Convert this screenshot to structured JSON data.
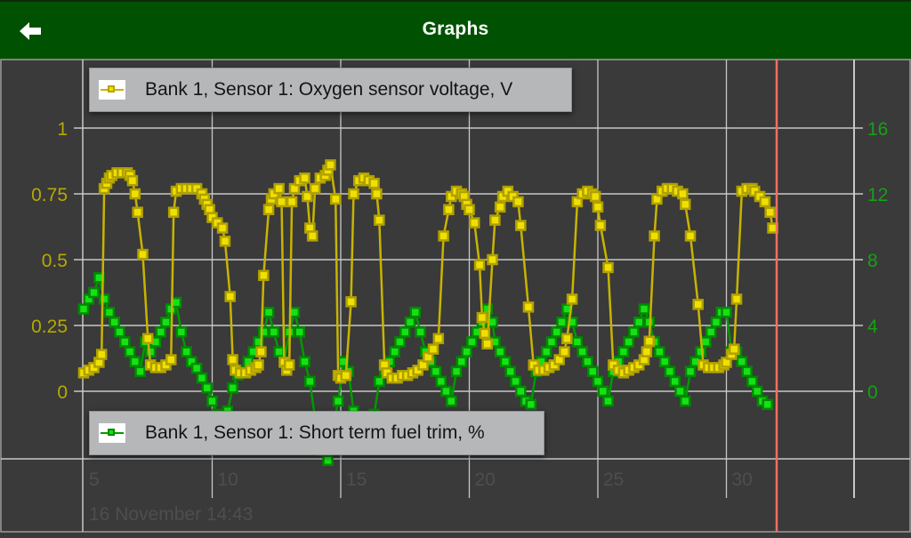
{
  "appbar": {
    "title": "Graphs",
    "back_icon": "arrow-left-icon"
  },
  "colors": {
    "appbar_bg": "#005202",
    "plot_bg": "#3a3a3a",
    "grid": "#c8c8c8",
    "o2_series": "#c8b400",
    "o2_marker_fill": "#f0e000",
    "fuel_trim_series": "#009a00",
    "fuel_trim_marker_fill": "#16e016",
    "cursor_line": "#f07060",
    "x_label": "#4e4e4e"
  },
  "legends": {
    "o2": "Bank 1, Sensor 1: Oxygen sensor voltage, V",
    "fuel_trim": "Bank 1, Sensor 1: Short term fuel trim, %"
  },
  "footer": {
    "timestamp": "16 November 14:43"
  },
  "chart_data": {
    "type": "line",
    "title": "Graphs",
    "xlabel": "16 November 14:43",
    "x_ticks": [
      5,
      10,
      15,
      20,
      25,
      30
    ],
    "xlim": [
      5,
      34.5
    ],
    "cursor_x": 31.8,
    "left_axis": {
      "label": "Oxygen sensor voltage, V",
      "ticks": [
        "0",
        "0.25",
        "0.5",
        "0.75",
        "1"
      ],
      "tick_values": [
        0,
        0.25,
        0.5,
        0.75,
        1
      ],
      "ylim": [
        -0.25,
        1.25
      ]
    },
    "right_axis": {
      "label": "Short term fuel trim, %",
      "ticks": [
        "0",
        "4",
        "8",
        "12",
        "16"
      ],
      "tick_values": [
        0,
        4,
        8,
        12,
        16
      ],
      "ylim": [
        -4,
        20
      ]
    },
    "grid": true,
    "legend_position": "top-left / bottom-left",
    "series": [
      {
        "name": "Bank 1, Sensor 1: Oxygen sensor voltage, V",
        "axis": "left",
        "points": [
          [
            5.0,
            0.07
          ],
          [
            5.2,
            0.08
          ],
          [
            5.4,
            0.09
          ],
          [
            5.6,
            0.11
          ],
          [
            5.7,
            0.14
          ],
          [
            5.8,
            0.77
          ],
          [
            5.9,
            0.79
          ],
          [
            6.0,
            0.81
          ],
          [
            6.1,
            0.82
          ],
          [
            6.3,
            0.83
          ],
          [
            6.5,
            0.83
          ],
          [
            6.7,
            0.83
          ],
          [
            6.8,
            0.82
          ],
          [
            6.9,
            0.8
          ],
          [
            7.0,
            0.75
          ],
          [
            7.1,
            0.68
          ],
          [
            7.3,
            0.52
          ],
          [
            7.5,
            0.2
          ],
          [
            7.6,
            0.1
          ],
          [
            7.8,
            0.09
          ],
          [
            8.0,
            0.09
          ],
          [
            8.2,
            0.1
          ],
          [
            8.4,
            0.12
          ],
          [
            8.5,
            0.68
          ],
          [
            8.6,
            0.76
          ],
          [
            8.8,
            0.77
          ],
          [
            9.0,
            0.77
          ],
          [
            9.2,
            0.77
          ],
          [
            9.4,
            0.77
          ],
          [
            9.6,
            0.75
          ],
          [
            9.7,
            0.73
          ],
          [
            9.8,
            0.71
          ],
          [
            9.9,
            0.69
          ],
          [
            10.0,
            0.66
          ],
          [
            10.2,
            0.64
          ],
          [
            10.4,
            0.62
          ],
          [
            10.5,
            0.57
          ],
          [
            10.7,
            0.36
          ],
          [
            10.8,
            0.12
          ],
          [
            10.9,
            0.08
          ],
          [
            11.1,
            0.07
          ],
          [
            11.3,
            0.07
          ],
          [
            11.5,
            0.08
          ],
          [
            11.7,
            0.09
          ],
          [
            11.8,
            0.1
          ],
          [
            11.9,
            0.15
          ],
          [
            12.0,
            0.44
          ],
          [
            12.2,
            0.69
          ],
          [
            12.3,
            0.73
          ],
          [
            12.4,
            0.75
          ],
          [
            12.6,
            0.77
          ],
          [
            12.7,
            0.72
          ],
          [
            12.8,
            0.11
          ],
          [
            12.9,
            0.08
          ],
          [
            13.0,
            0.1
          ],
          [
            13.1,
            0.72
          ],
          [
            13.2,
            0.77
          ],
          [
            13.4,
            0.8
          ],
          [
            13.6,
            0.81
          ],
          [
            13.7,
            0.74
          ],
          [
            13.8,
            0.62
          ],
          [
            13.9,
            0.59
          ],
          [
            14.0,
            0.77
          ],
          [
            14.2,
            0.81
          ],
          [
            14.4,
            0.82
          ],
          [
            14.5,
            0.84
          ],
          [
            14.6,
            0.86
          ],
          [
            14.8,
            0.73
          ],
          [
            14.9,
            0.06
          ],
          [
            15.0,
            0.05
          ],
          [
            15.2,
            0.06
          ],
          [
            15.4,
            0.34
          ],
          [
            15.5,
            0.75
          ],
          [
            15.7,
            0.8
          ],
          [
            15.9,
            0.81
          ],
          [
            16.1,
            0.8
          ],
          [
            16.3,
            0.79
          ],
          [
            16.4,
            0.75
          ],
          [
            16.5,
            0.65
          ],
          [
            16.7,
            0.1
          ],
          [
            16.8,
            0.07
          ],
          [
            17.0,
            0.05
          ],
          [
            17.2,
            0.05
          ],
          [
            17.4,
            0.06
          ],
          [
            17.6,
            0.06
          ],
          [
            17.8,
            0.07
          ],
          [
            18.0,
            0.08
          ],
          [
            18.2,
            0.1
          ],
          [
            18.4,
            0.13
          ],
          [
            18.6,
            0.16
          ],
          [
            18.8,
            0.2
          ],
          [
            19.0,
            0.59
          ],
          [
            19.2,
            0.69
          ],
          [
            19.3,
            0.74
          ],
          [
            19.5,
            0.76
          ],
          [
            19.7,
            0.75
          ],
          [
            19.8,
            0.74
          ],
          [
            19.9,
            0.71
          ],
          [
            20.0,
            0.69
          ],
          [
            20.2,
            0.64
          ],
          [
            20.4,
            0.48
          ],
          [
            20.5,
            0.28
          ],
          [
            20.6,
            0.22
          ],
          [
            20.7,
            0.18
          ],
          [
            20.9,
            0.5
          ],
          [
            21.0,
            0.65
          ],
          [
            21.2,
            0.7
          ],
          [
            21.3,
            0.74
          ],
          [
            21.5,
            0.76
          ],
          [
            21.7,
            0.74
          ],
          [
            21.9,
            0.72
          ],
          [
            22.0,
            0.63
          ],
          [
            22.3,
            0.32
          ],
          [
            22.5,
            0.1
          ],
          [
            22.7,
            0.08
          ],
          [
            22.9,
            0.08
          ],
          [
            23.1,
            0.09
          ],
          [
            23.3,
            0.1
          ],
          [
            23.5,
            0.12
          ],
          [
            23.7,
            0.15
          ],
          [
            23.8,
            0.2
          ],
          [
            24.0,
            0.35
          ],
          [
            24.2,
            0.72
          ],
          [
            24.4,
            0.75
          ],
          [
            24.6,
            0.76
          ],
          [
            24.8,
            0.75
          ],
          [
            24.9,
            0.74
          ],
          [
            25.0,
            0.7
          ],
          [
            25.1,
            0.63
          ],
          [
            25.4,
            0.47
          ],
          [
            25.6,
            0.1
          ],
          [
            25.8,
            0.08
          ],
          [
            26.0,
            0.07
          ],
          [
            26.2,
            0.08
          ],
          [
            26.4,
            0.09
          ],
          [
            26.6,
            0.1
          ],
          [
            26.8,
            0.12
          ],
          [
            26.9,
            0.15
          ],
          [
            27.0,
            0.19
          ],
          [
            27.2,
            0.59
          ],
          [
            27.3,
            0.73
          ],
          [
            27.5,
            0.76
          ],
          [
            27.7,
            0.77
          ],
          [
            27.9,
            0.77
          ],
          [
            28.1,
            0.76
          ],
          [
            28.3,
            0.75
          ],
          [
            28.4,
            0.71
          ],
          [
            28.6,
            0.59
          ],
          [
            28.9,
            0.33
          ],
          [
            29.1,
            0.1
          ],
          [
            29.3,
            0.09
          ],
          [
            29.5,
            0.09
          ],
          [
            29.7,
            0.09
          ],
          [
            29.9,
            0.1
          ],
          [
            30.0,
            0.11
          ],
          [
            30.2,
            0.14
          ],
          [
            30.3,
            0.16
          ],
          [
            30.4,
            0.35
          ],
          [
            30.6,
            0.76
          ],
          [
            30.8,
            0.77
          ],
          [
            31.0,
            0.77
          ],
          [
            31.1,
            0.76
          ],
          [
            31.3,
            0.74
          ],
          [
            31.5,
            0.72
          ],
          [
            31.7,
            0.68
          ],
          [
            31.8,
            0.62
          ]
        ]
      },
      {
        "name": "Bank 1, Sensor 1: Short term fuel trim, %",
        "axis": "right",
        "points": [
          [
            5.0,
            5.0
          ],
          [
            5.2,
            5.6
          ],
          [
            5.4,
            6.0
          ],
          [
            5.6,
            6.9
          ],
          [
            5.8,
            5.6
          ],
          [
            6.0,
            4.8
          ],
          [
            6.2,
            4.2
          ],
          [
            6.4,
            3.6
          ],
          [
            6.6,
            3.0
          ],
          [
            6.8,
            2.4
          ],
          [
            7.0,
            1.8
          ],
          [
            7.2,
            1.2
          ],
          [
            7.4,
            3.0
          ],
          [
            7.6,
            2.4
          ],
          [
            7.8,
            3.0
          ],
          [
            8.0,
            3.6
          ],
          [
            8.2,
            4.2
          ],
          [
            8.4,
            5.0
          ],
          [
            8.6,
            5.4
          ],
          [
            8.8,
            3.6
          ],
          [
            9.0,
            2.4
          ],
          [
            9.2,
            1.8
          ],
          [
            9.4,
            1.4
          ],
          [
            9.6,
            0.8
          ],
          [
            9.8,
            0.2
          ],
          [
            10.0,
            -0.6
          ],
          [
            10.2,
            -1.4
          ],
          [
            10.5,
            -2.0
          ],
          [
            10.6,
            -1.2
          ],
          [
            10.8,
            0.2
          ],
          [
            11.0,
            1.0
          ],
          [
            11.2,
            1.2
          ],
          [
            11.4,
            1.8
          ],
          [
            11.6,
            2.4
          ],
          [
            11.8,
            3.0
          ],
          [
            12.0,
            3.6
          ],
          [
            12.2,
            4.8
          ],
          [
            12.4,
            3.6
          ],
          [
            12.6,
            2.4
          ],
          [
            12.8,
            1.8
          ],
          [
            13.0,
            3.6
          ],
          [
            13.2,
            4.8
          ],
          [
            13.4,
            3.6
          ],
          [
            13.6,
            1.8
          ],
          [
            13.8,
            0.6
          ],
          [
            14.0,
            -1.6
          ],
          [
            14.2,
            -2.2
          ],
          [
            14.3,
            -3.6
          ],
          [
            14.5,
            -4.2
          ],
          [
            14.7,
            -2.2
          ],
          [
            14.9,
            -0.6
          ],
          [
            15.1,
            1.8
          ],
          [
            15.3,
            1.2
          ],
          [
            15.5,
            -1.2
          ],
          [
            15.7,
            -2.0
          ],
          [
            15.9,
            -2.6
          ],
          [
            16.1,
            -2.4
          ],
          [
            16.3,
            -1.4
          ],
          [
            16.5,
            0.6
          ],
          [
            16.7,
            1.2
          ],
          [
            16.9,
            1.8
          ],
          [
            17.1,
            2.4
          ],
          [
            17.3,
            3.0
          ],
          [
            17.5,
            3.6
          ],
          [
            17.7,
            4.2
          ],
          [
            17.9,
            4.8
          ],
          [
            18.1,
            3.6
          ],
          [
            18.3,
            2.4
          ],
          [
            18.5,
            1.8
          ],
          [
            18.7,
            1.2
          ],
          [
            18.9,
            0.6
          ],
          [
            19.1,
            0.0
          ],
          [
            19.3,
            -0.6
          ],
          [
            19.5,
            1.2
          ],
          [
            19.7,
            1.8
          ],
          [
            19.9,
            2.4
          ],
          [
            20.1,
            3.0
          ],
          [
            20.3,
            3.6
          ],
          [
            20.5,
            4.2
          ],
          [
            20.7,
            5.0
          ],
          [
            20.9,
            4.2
          ],
          [
            21.0,
            3.0
          ],
          [
            21.2,
            2.4
          ],
          [
            21.4,
            1.8
          ],
          [
            21.6,
            1.2
          ],
          [
            21.8,
            0.6
          ],
          [
            22.0,
            0.0
          ],
          [
            22.2,
            -0.6
          ],
          [
            22.4,
            -0.8
          ],
          [
            22.6,
            1.2
          ],
          [
            22.8,
            1.8
          ],
          [
            23.0,
            2.4
          ],
          [
            23.2,
            3.0
          ],
          [
            23.4,
            3.6
          ],
          [
            23.6,
            4.2
          ],
          [
            23.8,
            5.0
          ],
          [
            24.0,
            4.2
          ],
          [
            24.2,
            3.0
          ],
          [
            24.4,
            2.4
          ],
          [
            24.6,
            1.8
          ],
          [
            24.8,
            1.2
          ],
          [
            25.0,
            0.6
          ],
          [
            25.2,
            0.0
          ],
          [
            25.4,
            -0.6
          ],
          [
            25.6,
            1.2
          ],
          [
            25.8,
            1.8
          ],
          [
            26.0,
            2.4
          ],
          [
            26.2,
            3.0
          ],
          [
            26.4,
            3.6
          ],
          [
            26.6,
            4.2
          ],
          [
            26.8,
            5.0
          ],
          [
            27.0,
            4.2
          ],
          [
            27.2,
            3.0
          ],
          [
            27.4,
            2.4
          ],
          [
            27.6,
            1.8
          ],
          [
            27.8,
            1.2
          ],
          [
            28.0,
            0.6
          ],
          [
            28.2,
            0.0
          ],
          [
            28.4,
            -0.6
          ],
          [
            28.6,
            1.2
          ],
          [
            28.8,
            1.8
          ],
          [
            29.0,
            2.4
          ],
          [
            29.2,
            3.0
          ],
          [
            29.4,
            3.6
          ],
          [
            29.6,
            4.2
          ],
          [
            29.8,
            4.8
          ],
          [
            30.0,
            4.8
          ],
          [
            30.2,
            2.4
          ],
          [
            30.4,
            2.4
          ],
          [
            30.6,
            1.8
          ],
          [
            30.8,
            1.2
          ],
          [
            31.0,
            0.6
          ],
          [
            31.2,
            0.0
          ],
          [
            31.4,
            -0.6
          ],
          [
            31.6,
            -0.8
          ]
        ]
      }
    ]
  }
}
